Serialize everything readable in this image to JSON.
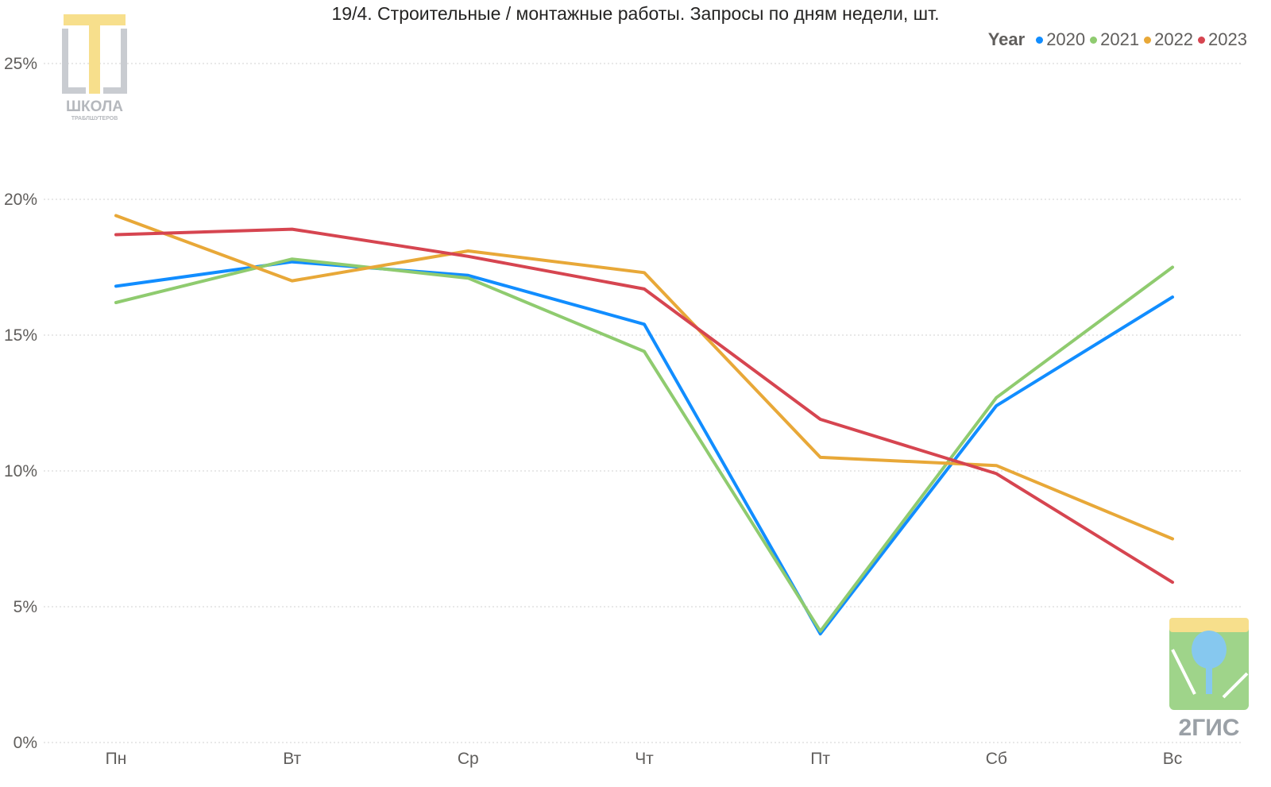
{
  "chart_data": {
    "type": "line",
    "title": "19/4. Строительные / монтажные работы. Запросы по дням недели, шт.",
    "categories": [
      "Пн",
      "Вт",
      "Ср",
      "Чт",
      "Пт",
      "Сб",
      "Вс"
    ],
    "y_ticks": [
      "0%",
      "5%",
      "10%",
      "15%",
      "20%",
      "25%"
    ],
    "ylim": [
      0,
      25
    ],
    "y_unit": "%",
    "grid": true,
    "legend_title": "Year",
    "legend_position": "top-right",
    "series": [
      {
        "name": "2020",
        "color": "#118dff",
        "values": [
          16.8,
          17.7,
          17.2,
          15.4,
          4.0,
          12.4,
          16.4
        ]
      },
      {
        "name": "2021",
        "color": "#8fcb6f",
        "values": [
          16.2,
          17.8,
          17.1,
          14.4,
          4.1,
          12.7,
          17.5
        ]
      },
      {
        "name": "2022",
        "color": "#e8a838",
        "values": [
          19.4,
          17.0,
          18.1,
          17.3,
          10.5,
          10.2,
          7.5
        ]
      },
      {
        "name": "2023",
        "color": "#d64550",
        "values": [
          18.7,
          18.9,
          17.9,
          16.7,
          11.9,
          9.9,
          5.9
        ]
      }
    ]
  },
  "logos": {
    "school": {
      "line1": "ШКОЛА",
      "line2": "ТРАБЛШУТЕРОВ"
    },
    "gis": {
      "text": "2ГИС"
    }
  }
}
